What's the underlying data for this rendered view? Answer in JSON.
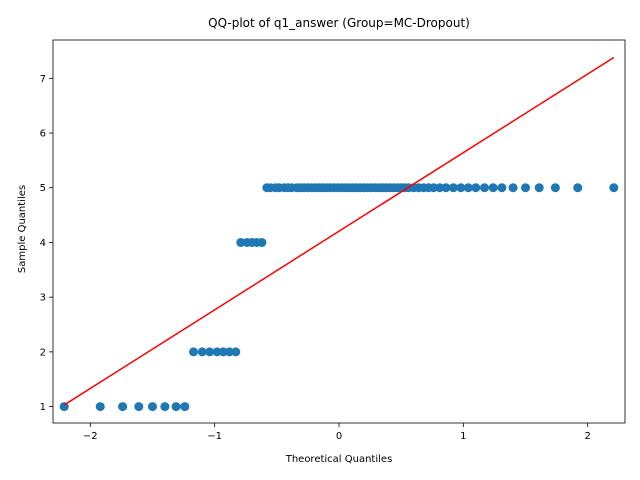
{
  "chart_data": {
    "type": "scatter",
    "title": "QQ-plot of q1_answer (Group=MC-Dropout)",
    "xlabel": "Theoretical Quantiles",
    "ylabel": "Sample Quantiles",
    "xlim": [
      -2.3,
      2.3
    ],
    "ylim": [
      0.7,
      7.7
    ],
    "xticks": [
      -2,
      -1,
      0,
      1,
      2
    ],
    "xtick_labels": [
      "−2",
      "−1",
      "0",
      "1",
      "2"
    ],
    "yticks": [
      1,
      2,
      3,
      4,
      5,
      6,
      7
    ],
    "ytick_labels": [
      "1",
      "2",
      "3",
      "4",
      "5",
      "6",
      "7"
    ],
    "grid": false,
    "marker_color": "#1f77b4",
    "line_color": "#ff0000",
    "series": [
      {
        "kind": "points",
        "x": [
          -2.21,
          -1.92,
          -1.74,
          -1.61,
          -1.5,
          -1.4,
          -1.31,
          -1.24,
          -1.17,
          -1.1,
          -1.04,
          -0.98,
          -0.93,
          -0.88,
          -0.83,
          -0.79,
          -0.74,
          -0.7,
          -0.66,
          -0.62,
          -0.58,
          -0.55,
          -0.51,
          -0.48,
          -0.44,
          -0.41,
          -0.38,
          -0.34,
          -0.31,
          -0.28,
          -0.25,
          -0.22,
          -0.19,
          -0.16,
          -0.13,
          -0.1,
          -0.07,
          -0.04,
          -0.01,
          0.02,
          0.05,
          0.08,
          0.11,
          0.14,
          0.17,
          0.2,
          0.23,
          0.26,
          0.29,
          0.32,
          0.35,
          0.38,
          0.41,
          0.44,
          0.47,
          0.5,
          0.53,
          0.56,
          0.6,
          0.64,
          0.68,
          0.72,
          0.76,
          0.81,
          0.86,
          0.92,
          0.98,
          1.04,
          1.1,
          1.17,
          1.24,
          1.31,
          1.4,
          1.5,
          1.61,
          1.74,
          1.92,
          2.21
        ],
        "y": [
          1,
          1,
          1,
          1,
          1,
          1,
          1,
          1,
          2,
          2,
          2,
          2,
          2,
          2,
          2,
          4,
          4,
          4,
          4,
          4,
          5,
          5,
          5,
          5,
          5,
          5,
          5,
          5,
          5,
          5,
          5,
          5,
          5,
          5,
          5,
          5,
          5,
          5,
          5,
          5,
          5,
          5,
          5,
          5,
          5,
          5,
          5,
          5,
          5,
          5,
          5,
          5,
          5,
          5,
          5,
          5,
          5,
          5,
          5,
          5,
          5,
          5,
          5,
          5,
          5,
          5,
          5,
          5,
          5,
          5,
          5,
          5,
          5,
          5,
          5,
          5,
          5,
          5
        ]
      },
      {
        "kind": "reference-line",
        "x": [
          -2.21,
          2.21
        ],
        "y": [
          1.03,
          7.38
        ]
      }
    ]
  }
}
